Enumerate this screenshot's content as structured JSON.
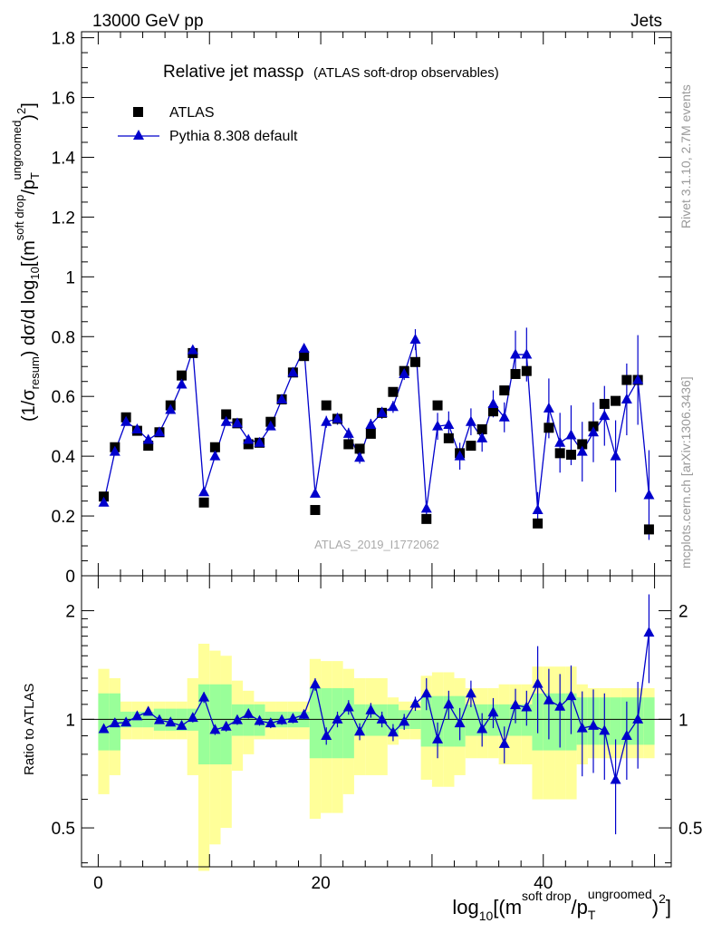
{
  "header": {
    "left": "13000 GeV pp",
    "right": "Jets"
  },
  "side_labels": {
    "rivet": "Rivet 3.1.10,  2.7M events",
    "mcplots": "mcplots.cern.ch [arXiv:1306.3436]"
  },
  "watermark": "ATLAS_2019_I1772062",
  "title": {
    "main": "Relative jet massρ",
    "sub": "(ATLAS soft-drop observables)"
  },
  "legend": {
    "data": "ATLAS",
    "mc": "Pythia 8.308 default"
  },
  "axes": {
    "ylabel_main": "(1/σresum) dσ/d log10[(msoft drop/pTungroomed)2]",
    "ylabel_ratio": "Ratio to ATLAS",
    "xlabel": "log10[(msoft drop/pTungroomed)2]"
  },
  "colors": {
    "data": "#000000",
    "mc": "#0000cc",
    "band_inner": "#99ff99",
    "band_outer": "#ffff99"
  },
  "chart_data": {
    "type": "scatter",
    "x": [
      0.5,
      1.5,
      2.5,
      3.5,
      4.5,
      5.5,
      6.5,
      7.5,
      8.5,
      9.5,
      10.5,
      11.5,
      12.5,
      13.5,
      14.5,
      15.5,
      16.5,
      17.5,
      18.5,
      19.5,
      20.5,
      21.5,
      22.5,
      23.5,
      24.5,
      25.5,
      26.5,
      27.5,
      28.5,
      29.5,
      30.5,
      31.5,
      32.5,
      33.5,
      34.5,
      35.5,
      36.5,
      37.5,
      38.5,
      39.5,
      40.5,
      41.5,
      42.5,
      43.5,
      44.5,
      45.5,
      46.5,
      47.5,
      48.5,
      49.5
    ],
    "xlim": [
      -1.5,
      51.5
    ],
    "xticks": [
      0,
      20,
      40
    ],
    "main_ylim": [
      0,
      1.82
    ],
    "main_yticks": [
      0,
      0.2,
      0.4,
      0.6,
      0.8,
      1,
      1.2,
      1.4,
      1.6,
      1.8
    ],
    "ratio_ylim": [
      0.39,
      2.5
    ],
    "ratio_yticks": [
      0.5,
      1,
      2
    ],
    "ratio_scale": "log",
    "series": [
      {
        "name": "ATLAS",
        "marker": "square",
        "values": [
          0.265,
          0.43,
          0.53,
          0.485,
          0.435,
          0.48,
          0.57,
          0.67,
          0.745,
          0.245,
          0.43,
          0.54,
          0.51,
          0.44,
          0.445,
          0.515,
          0.59,
          0.68,
          0.735,
          0.22,
          0.57,
          0.525,
          0.44,
          0.425,
          0.475,
          0.545,
          0.615,
          0.685,
          0.715,
          0.19,
          0.57,
          0.46,
          0.41,
          0.435,
          0.49,
          0.55,
          0.62,
          0.675,
          0.685,
          0.175,
          0.495,
          0.41,
          0.405,
          0.44,
          0.5,
          0.575,
          0.585,
          0.655,
          0.655,
          0.155
        ]
      },
      {
        "name": "Pythia 8.308 default",
        "marker": "triangle",
        "values": [
          0.245,
          0.415,
          0.515,
          0.49,
          0.455,
          0.48,
          0.555,
          0.64,
          0.755,
          0.28,
          0.4,
          0.515,
          0.51,
          0.455,
          0.445,
          0.5,
          0.59,
          0.68,
          0.76,
          0.275,
          0.515,
          0.525,
          0.475,
          0.395,
          0.505,
          0.545,
          0.565,
          0.675,
          0.79,
          0.225,
          0.5,
          0.505,
          0.4,
          0.515,
          0.46,
          0.575,
          0.53,
          0.74,
          0.74,
          0.22,
          0.56,
          0.445,
          0.47,
          0.415,
          0.48,
          0.535,
          0.4,
          0.59,
          0.655,
          0.27
        ],
        "errors": [
          0.006,
          0.006,
          0.006,
          0.006,
          0.006,
          0.006,
          0.006,
          0.006,
          0.008,
          0.01,
          0.008,
          0.008,
          0.008,
          0.008,
          0.008,
          0.008,
          0.008,
          0.01,
          0.012,
          0.012,
          0.02,
          0.02,
          0.02,
          0.02,
          0.02,
          0.02,
          0.02,
          0.02,
          0.035,
          0.025,
          0.045,
          0.045,
          0.045,
          0.045,
          0.045,
          0.045,
          0.05,
          0.08,
          0.09,
          0.06,
          0.1,
          0.1,
          0.1,
          0.1,
          0.1,
          0.1,
          0.12,
          0.12,
          0.15,
          0.15
        ]
      }
    ],
    "ratio": {
      "values": [
        0.94,
        0.975,
        0.98,
        1.02,
        1.05,
        0.995,
        0.98,
        0.96,
        1.01,
        1.15,
        0.935,
        0.955,
        0.995,
        1.035,
        0.99,
        0.975,
        0.995,
        1.005,
        1.03,
        1.25,
        0.9,
        1.0,
        1.08,
        0.925,
        1.06,
        1.0,
        0.92,
        0.985,
        1.105,
        1.18,
        0.88,
        1.1,
        0.975,
        1.18,
        0.94,
        1.045,
        0.855,
        1.095,
        1.08,
        1.255,
        1.13,
        1.085,
        1.16,
        0.945,
        0.96,
        0.93,
        0.68,
        0.9,
        1.0,
        1.74
      ],
      "errors": [
        0.02,
        0.02,
        0.02,
        0.02,
        0.02,
        0.02,
        0.02,
        0.02,
        0.03,
        0.04,
        0.03,
        0.03,
        0.03,
        0.03,
        0.03,
        0.03,
        0.03,
        0.03,
        0.03,
        0.05,
        0.05,
        0.05,
        0.05,
        0.05,
        0.05,
        0.05,
        0.05,
        0.05,
        0.05,
        0.12,
        0.1,
        0.1,
        0.1,
        0.1,
        0.1,
        0.1,
        0.1,
        0.12,
        0.12,
        0.34,
        0.25,
        0.25,
        0.25,
        0.25,
        0.25,
        0.25,
        0.2,
        0.22,
        0.27,
        0.48
      ],
      "band_inner": [
        0.18,
        0.18,
        0.05,
        0.05,
        0.05,
        0.07,
        0.07,
        0.07,
        0.07,
        0.25,
        0.25,
        0.25,
        0.1,
        0.1,
        0.1,
        0.05,
        0.05,
        0.05,
        0.05,
        0.22,
        0.22,
        0.22,
        0.22,
        0.1,
        0.1,
        0.1,
        0.1,
        0.06,
        0.06,
        0.16,
        0.16,
        0.16,
        0.16,
        0.1,
        0.1,
        0.1,
        0.1,
        0.1,
        0.1,
        0.18,
        0.18,
        0.18,
        0.18,
        0.15,
        0.15,
        0.15,
        0.15,
        0.15,
        0.15,
        0.15
      ],
      "band_outer": [
        0.38,
        0.3,
        0.12,
        0.12,
        0.12,
        0.12,
        0.12,
        0.12,
        0.3,
        0.62,
        0.55,
        0.5,
        0.28,
        0.2,
        0.12,
        0.12,
        0.12,
        0.12,
        0.12,
        0.47,
        0.45,
        0.45,
        0.38,
        0.3,
        0.3,
        0.3,
        0.15,
        0.12,
        0.12,
        0.32,
        0.35,
        0.35,
        0.3,
        0.22,
        0.22,
        0.22,
        0.25,
        0.25,
        0.25,
        0.4,
        0.4,
        0.4,
        0.4,
        0.25,
        0.22,
        0.22,
        0.22,
        0.22,
        0.22,
        0.22
      ]
    }
  }
}
